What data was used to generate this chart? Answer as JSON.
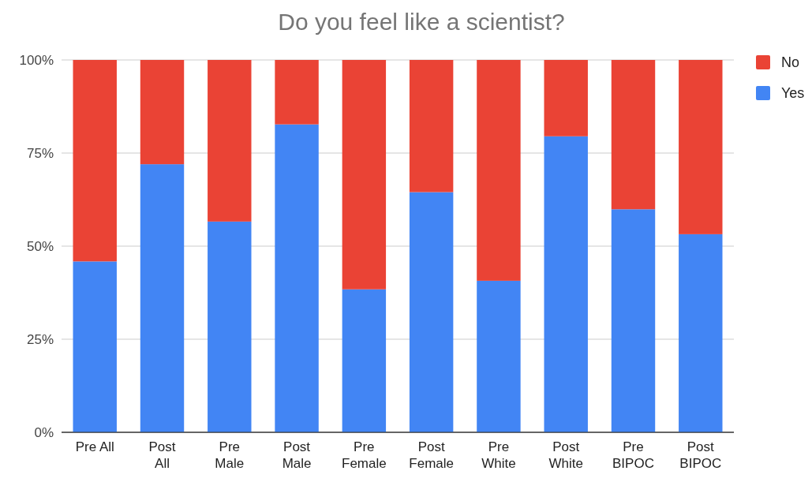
{
  "chart_data": {
    "type": "bar",
    "title": "Do you feel like a scientist?",
    "stacked": true,
    "categories": [
      "Pre All",
      "Post All",
      "Pre Male",
      "Post Male",
      "Pre Female",
      "Post Female",
      "Pre White",
      "Post White",
      "Pre BIPOC",
      "Post BIPOC"
    ],
    "series": [
      {
        "name": "Yes",
        "color": "#4285f4",
        "values": [
          45.9,
          72.0,
          56.6,
          82.7,
          38.4,
          64.5,
          40.7,
          79.5,
          59.9,
          53.2
        ]
      },
      {
        "name": "No",
        "color": "#ea4335",
        "values": [
          54.1,
          28.0,
          43.4,
          17.3,
          61.6,
          35.5,
          59.3,
          20.5,
          40.1,
          46.8
        ]
      }
    ],
    "ylim": [
      0,
      100
    ],
    "yticks": [
      {
        "value": 0,
        "label": "0%"
      },
      {
        "value": 25,
        "label": "25%"
      },
      {
        "value": 50,
        "label": "50%"
      },
      {
        "value": 75,
        "label": "75%"
      },
      {
        "value": 100,
        "label": "100%"
      }
    ],
    "grid": true,
    "legend": "top right"
  }
}
